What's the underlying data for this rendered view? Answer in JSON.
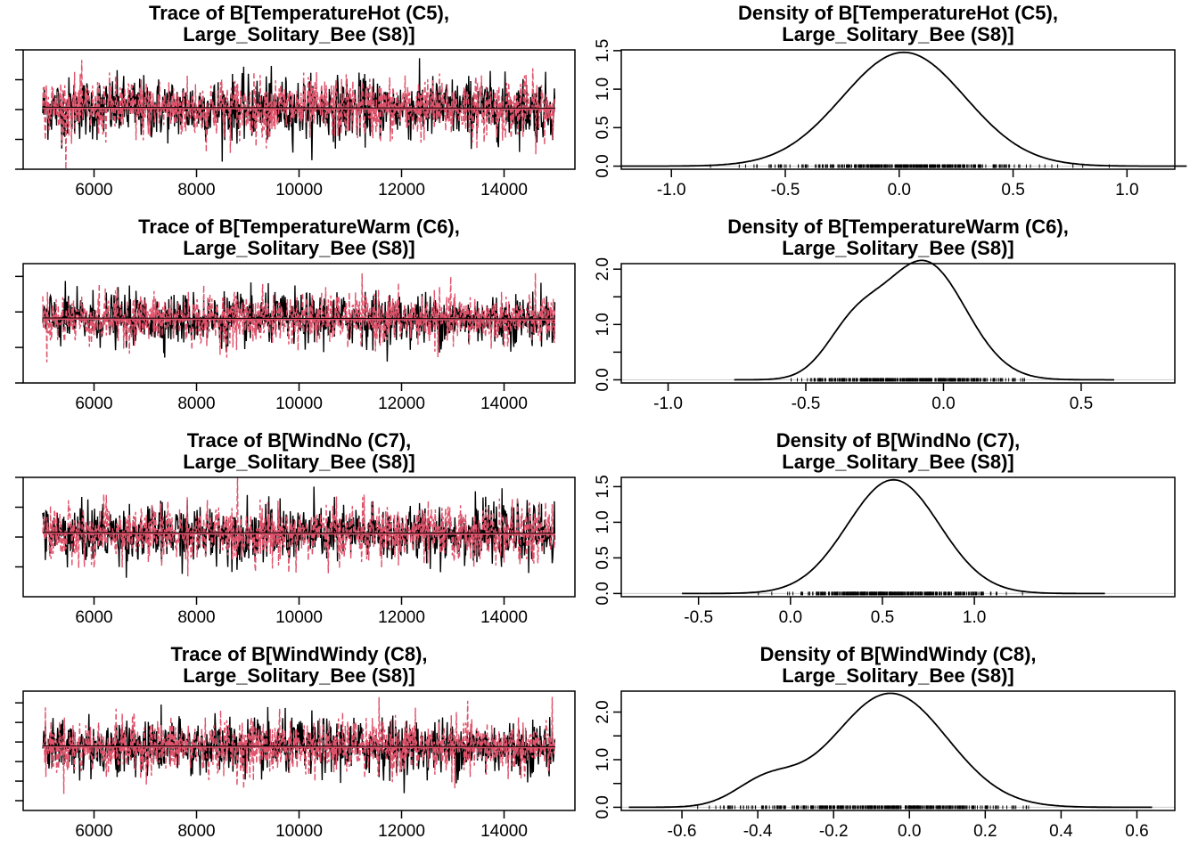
{
  "chart_data": [
    {
      "type": "line",
      "kind": "trace",
      "title": "Trace of B[TemperatureHot (C5), Large_Solitary_Bee (S8)]",
      "xlim": [
        5000,
        15000
      ],
      "xticks": [
        6000,
        8000,
        10000,
        12000,
        14000
      ],
      "ylim": [
        -1.0,
        1.0
      ],
      "yticks": [
        -1.0,
        -0.5,
        0.0,
        0.5,
        1.0
      ],
      "chains": [
        {
          "color": "#000000",
          "mean": 0.02,
          "sd": 0.27
        },
        {
          "color": "#DF536B",
          "mean": 0.02,
          "sd": 0.27
        }
      ]
    },
    {
      "type": "line",
      "kind": "density",
      "title": "Density of B[TemperatureHot (C5), Large_Solitary_Bee (S8)]",
      "xlim": [
        -1.22,
        1.21
      ],
      "xticks": [
        -1.0,
        -0.5,
        0.0,
        0.5,
        1.0
      ],
      "ylim": [
        -0.04,
        1.51
      ],
      "yticks": [
        0.0,
        0.5,
        1.0,
        1.5
      ],
      "ytick_labels": [
        "0.0",
        "0.5",
        "1.0",
        "1.5"
      ],
      "components": [
        {
          "mean": 0.02,
          "sd": 0.27,
          "w": 1
        }
      ]
    },
    {
      "type": "line",
      "kind": "trace",
      "title": "Trace of B[TemperatureWarm (C6), Large_Solitary_Bee (S8)]",
      "xlim": [
        5000,
        15000
      ],
      "xticks": [
        6000,
        8000,
        10000,
        12000,
        14000
      ],
      "ylim": [
        -1.0,
        0.68
      ],
      "yticks": [
        -1.0,
        -0.5,
        0.0,
        0.5
      ],
      "chains": [
        {
          "color": "#000000",
          "mean": -0.1,
          "sd": 0.19
        },
        {
          "color": "#DF536B",
          "mean": -0.1,
          "sd": 0.19
        }
      ]
    },
    {
      "type": "line",
      "kind": "density",
      "title": "Density of B[TemperatureWarm (C6), Large_Solitary_Bee (S8)]",
      "xlim": [
        -1.17,
        0.84
      ],
      "xticks": [
        -1.0,
        -0.5,
        0.0,
        0.5
      ],
      "ylim": [
        -0.057,
        2.1
      ],
      "yticks": [
        0.0,
        0.5,
        1.0,
        1.5,
        2.0
      ],
      "ytick_labels": [
        "0.0",
        "",
        "1.0",
        "",
        "2.0"
      ],
      "components": [
        {
          "mean": -0.07,
          "sd": 0.15,
          "w": 0.8
        },
        {
          "mean": -0.33,
          "sd": 0.1,
          "w": 0.2
        }
      ]
    },
    {
      "type": "line",
      "kind": "trace",
      "title": "Trace of B[WindNo (C7), Large_Solitary_Bee (S8)]",
      "xlim": [
        5000,
        15000
      ],
      "xticks": [
        6000,
        8000,
        10000,
        12000,
        14000
      ],
      "ylim": [
        -0.5,
        1.5
      ],
      "yticks": [
        0.0,
        0.5,
        1.0,
        1.5
      ],
      "chains": [
        {
          "color": "#000000",
          "mean": 0.56,
          "sd": 0.25
        },
        {
          "color": "#DF536B",
          "mean": 0.56,
          "sd": 0.25
        }
      ]
    },
    {
      "type": "line",
      "kind": "density",
      "title": "Density of B[WindNo (C7), Large_Solitary_Bee (S8)]",
      "xlim": [
        -0.92,
        2.09
      ],
      "xticks": [
        -0.5,
        0.0,
        0.5,
        1.0
      ],
      "ylim": [
        -0.045,
        1.63
      ],
      "yticks": [
        0.0,
        0.5,
        1.0,
        1.5
      ],
      "ytick_labels": [
        "0.0",
        "0.5",
        "1.0",
        "1.5"
      ],
      "components": [
        {
          "mean": 0.56,
          "sd": 0.25,
          "w": 1
        }
      ]
    },
    {
      "type": "line",
      "kind": "trace",
      "title": "Trace of B[WindWindy (C8), Large_Solitary_Bee (S8)]",
      "xlim": [
        5000,
        15000
      ],
      "xticks": [
        6000,
        8000,
        10000,
        12000,
        14000
      ],
      "ylim": [
        -0.7,
        0.52
      ],
      "yticks": [
        -0.6,
        -0.4,
        -0.2,
        0.0,
        0.2,
        0.4
      ],
      "chains": [
        {
          "color": "#000000",
          "mean": -0.05,
          "sd": 0.15
        },
        {
          "color": "#DF536B",
          "mean": -0.05,
          "sd": 0.15
        }
      ]
    },
    {
      "type": "line",
      "kind": "density",
      "title": "Density of B[WindWindy (C8), Large_Solitary_Bee (S8)]",
      "xlim": [
        -0.76,
        0.7
      ],
      "xticks": [
        -0.6,
        -0.4,
        -0.2,
        0.0,
        0.2,
        0.4,
        0.6
      ],
      "ylim": [
        -0.067,
        2.44
      ],
      "yticks": [
        0.0,
        0.5,
        1.0,
        1.5,
        2.0
      ],
      "ytick_labels": [
        "0.0",
        "",
        "1.0",
        "",
        "2.0"
      ],
      "components": [
        {
          "mean": -0.05,
          "sd": 0.15,
          "w": 0.9
        },
        {
          "mean": -0.38,
          "sd": 0.08,
          "w": 0.1
        }
      ]
    }
  ]
}
